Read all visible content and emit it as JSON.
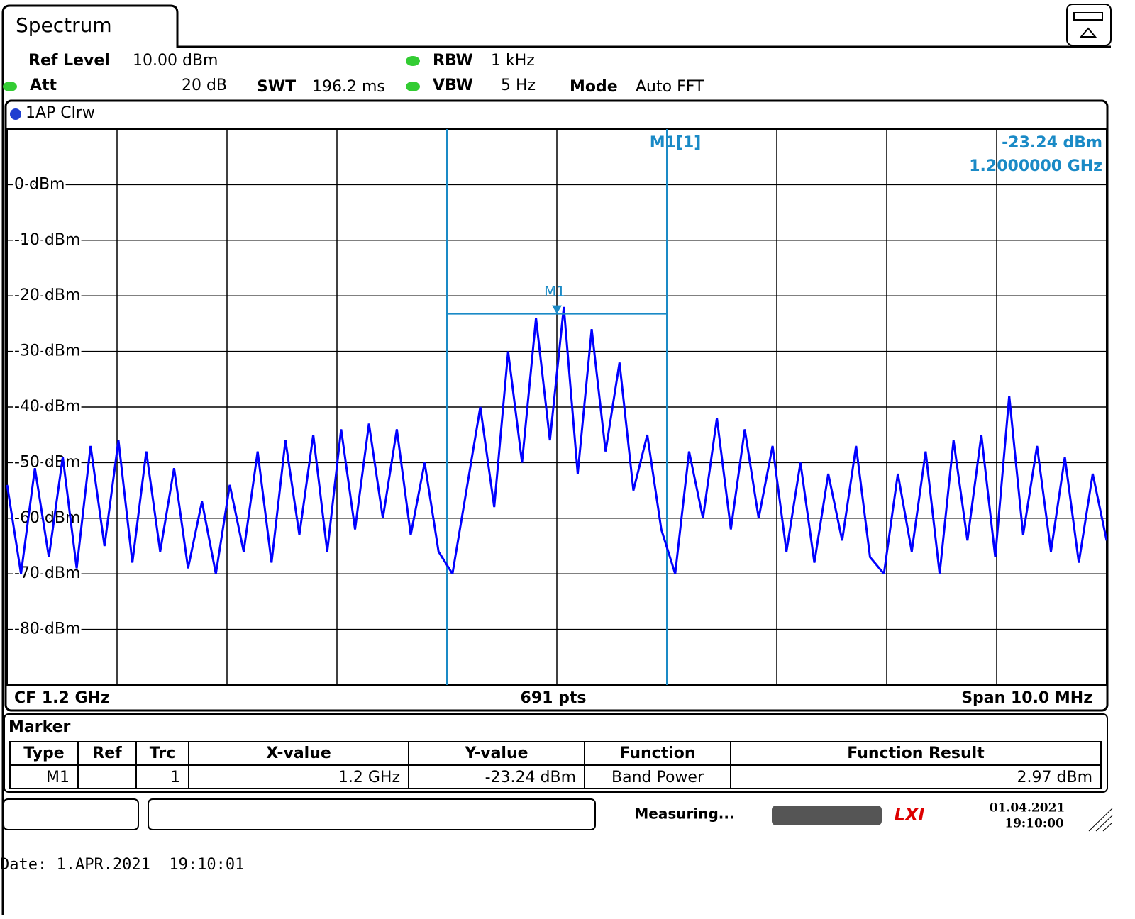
{
  "header": {
    "tab": "Spectrum",
    "ref_level_label": "Ref Level",
    "ref_level": "10.00 dBm",
    "att_label": "Att",
    "att": "20 dB",
    "swt_label": "SWT",
    "swt": "196.2 ms",
    "rbw_label": "RBW",
    "rbw": "1 kHz",
    "vbw_label": "VBW",
    "vbw": "5 Hz",
    "mode_label": "Mode",
    "mode": "Auto FFT"
  },
  "chart_data": {
    "type": "line",
    "series": [
      {
        "name": "1AP Clrw",
        "color": "#0000ff",
        "values": [
          -54,
          -70,
          -51,
          -67,
          -49,
          -69,
          -47,
          -65,
          -46,
          -68,
          -48,
          -66,
          -51,
          -69,
          -57,
          -70,
          -54,
          -66,
          -48,
          -68,
          -46,
          -63,
          -45,
          -66,
          -44,
          -62,
          -43,
          -60,
          -44,
          -63,
          -50,
          -66,
          -70,
          -55,
          -40,
          -58,
          -30,
          -50,
          -24,
          -46,
          -22,
          -52,
          -26,
          -48,
          -32,
          -55,
          -45,
          -62,
          -70,
          -48,
          -60,
          -42,
          -62,
          -44,
          -60,
          -47,
          -66,
          -50,
          -68,
          -52,
          -64,
          -47,
          -67,
          -70,
          -52,
          -66,
          -48,
          -70,
          -46,
          -64,
          -45,
          -67,
          -38,
          -63,
          -47,
          -66,
          -49,
          -68,
          -52,
          -64
        ]
      }
    ],
    "ylim": [
      -90,
      10
    ],
    "yticks": [
      {
        "value": 0,
        "label": "0 dBm"
      },
      {
        "value": -10,
        "label": "-10 dBm"
      },
      {
        "value": -20,
        "label": "-20 dBm"
      },
      {
        "value": -30,
        "label": "-30 dBm"
      },
      {
        "value": -40,
        "label": "-40 dBm"
      },
      {
        "value": -50,
        "label": "-50 dBm"
      },
      {
        "value": -60,
        "label": "-60 dBm"
      },
      {
        "value": -70,
        "label": "-70 dBm"
      },
      {
        "value": -80,
        "label": "-80 dBm"
      }
    ],
    "grid": true,
    "marker": {
      "name": "M1",
      "value": -23.24,
      "label": "-23.24 dBm",
      "readout_title": "M1[1]",
      "readout_freq": "1.2000000 GHz"
    },
    "footer": {
      "left": "CF 1.2 GHz",
      "center": "691 pts",
      "right": "Span 10.0 MHz"
    }
  },
  "marker_table": {
    "title": "Marker",
    "columns": [
      "Type",
      "Ref",
      "Trc",
      "X-value",
      "Y-value",
      "Function",
      "Function Result"
    ],
    "row": {
      "type": "M1",
      "trc": "1",
      "x": "1.2 GHz",
      "y": "-23.24 dBm",
      "function": "Band Power",
      "result": "2.97 dBm"
    }
  },
  "status": {
    "message": "Measuring...",
    "date": "01.04.2021",
    "time": "19:10:00"
  },
  "footnote": "Date: 1.APR.2021  19:10:01"
}
